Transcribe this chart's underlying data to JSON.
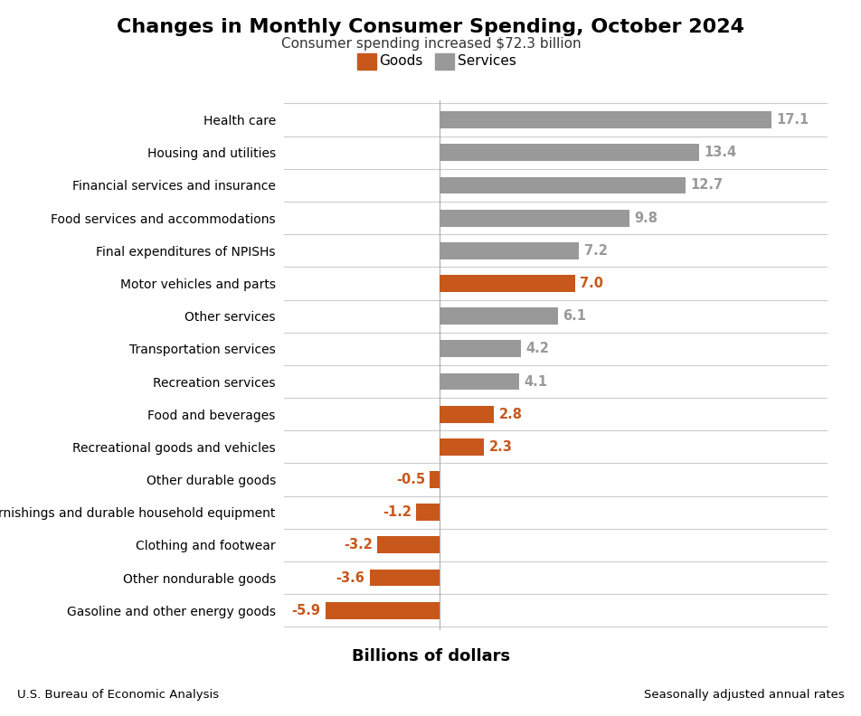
{
  "title": "Changes in Monthly Consumer Spending, October 2024",
  "subtitle": "Consumer spending increased $72.3 billion",
  "xlabel": "Billions of dollars",
  "footer_left": "U.S. Bureau of Economic Analysis",
  "footer_right": "Seasonally adjusted annual rates",
  "categories": [
    "Gasoline and other energy goods",
    "Other nondurable goods",
    "Clothing and footwear",
    "Furnishings and durable household equipment",
    "Other durable goods",
    "Recreational goods and vehicles",
    "Food and beverages",
    "Recreation services",
    "Transportation services",
    "Other services",
    "Motor vehicles and parts",
    "Final expenditures of NPISHs",
    "Food services and accommodations",
    "Financial services and insurance",
    "Housing and utilities",
    "Health care"
  ],
  "values": [
    -5.9,
    -3.6,
    -3.2,
    -1.2,
    -0.5,
    2.3,
    2.8,
    4.1,
    4.2,
    6.1,
    7.0,
    7.2,
    9.8,
    12.7,
    13.4,
    17.1
  ],
  "types": [
    "goods",
    "goods",
    "goods",
    "goods",
    "goods",
    "goods",
    "goods",
    "services",
    "services",
    "services",
    "goods",
    "services",
    "services",
    "services",
    "services",
    "services"
  ],
  "goods_color": "#C8571B",
  "services_color": "#999999",
  "label_color_goods": "#C8571B",
  "label_color_services": "#999999",
  "background_color": "#ffffff",
  "xlim": [
    -8,
    20
  ],
  "title_fontsize": 16,
  "subtitle_fontsize": 11,
  "xlabel_fontsize": 13,
  "bar_height": 0.52,
  "legend_fontsize": 11
}
